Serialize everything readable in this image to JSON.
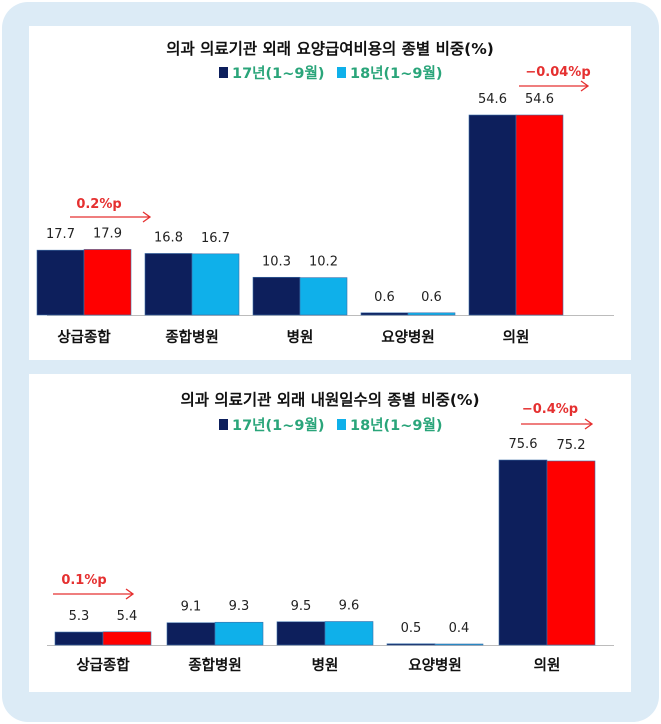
{
  "chart_data": [
    {
      "type": "bar",
      "title": "의과 의료기관 외래 요양급여비용의 종별 비중(%)",
      "categories": [
        "상급종합",
        "종합병원",
        "병원",
        "요양병원",
        "의원"
      ],
      "series": [
        {
          "name": "17년(1~9월)",
          "values": [
            17.7,
            16.8,
            10.3,
            0.6,
            54.6
          ],
          "color": "#0d1f5c"
        },
        {
          "name": "18년(1~9월)",
          "values": [
            17.9,
            16.7,
            10.2,
            0.6,
            54.6
          ],
          "color": "#0fb0ea"
        }
      ],
      "highlight_color": "#ff0000",
      "highlight_categories": [
        0,
        4
      ],
      "value_labels": [
        [
          "17.7",
          "16.8",
          "10.3",
          "0.6",
          "54.6"
        ],
        [
          "17.9",
          "16.7",
          "10.2",
          "0.6",
          "54.6"
        ]
      ],
      "annotations": [
        {
          "category": 0,
          "text": "0.2%p"
        },
        {
          "category": 4,
          "text": "−0.04%p"
        }
      ],
      "ylim": [
        0,
        54.6
      ],
      "grid": false,
      "legend": "top-center"
    },
    {
      "type": "bar",
      "title": "의과 의료기관 외래 내원일수의 종별 비중(%)",
      "categories": [
        "상급종합",
        "종합병원",
        "병원",
        "요양병원",
        "의원"
      ],
      "series": [
        {
          "name": "17년(1~9월)",
          "values": [
            5.3,
            9.1,
            9.5,
            0.5,
            75.6
          ],
          "color": "#0d1f5c"
        },
        {
          "name": "18년(1~9월)",
          "values": [
            5.4,
            9.3,
            9.6,
            0.4,
            75.2
          ],
          "color": "#0fb0ea"
        }
      ],
      "highlight_color": "#ff0000",
      "highlight_categories": [
        0,
        4
      ],
      "value_labels": [
        [
          "5.3",
          "9.1",
          "9.5",
          "0.5",
          "75.6"
        ],
        [
          "5.4",
          "9.3",
          "9.6",
          "0.4",
          "75.2"
        ]
      ],
      "annotations": [
        {
          "category": 0,
          "text": "0.1%p"
        },
        {
          "category": 4,
          "text": "−0.4%p"
        }
      ],
      "ylim": [
        0,
        75.6
      ],
      "grid": false,
      "legend": "top-center"
    }
  ]
}
